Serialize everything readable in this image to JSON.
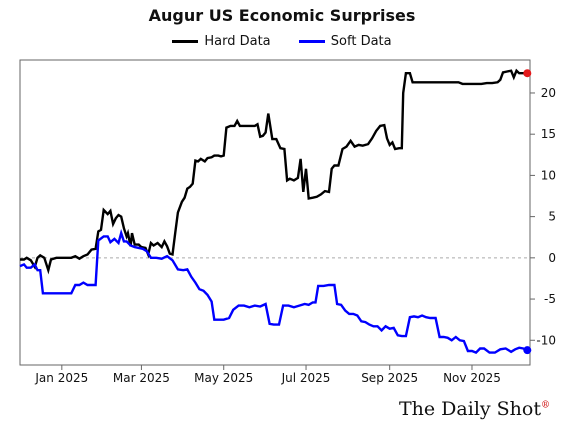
{
  "chart_data": {
    "type": "line",
    "title": "Augur US Economic Surprises",
    "xlabel": "",
    "ylabel": "",
    "ylim": [
      -13,
      24
    ],
    "x_tick_labels": [
      "Jan 2025",
      "Mar 2025",
      "May 2025",
      "Jul 2025",
      "Sep 2025",
      "Nov 2025"
    ],
    "x_tick_dates": [
      "2025-01-01",
      "2025-03-01",
      "2025-05-01",
      "2025-07-01",
      "2025-09-01",
      "2025-11-01"
    ],
    "x_range": [
      "2024-12-01",
      "2025-12-14"
    ],
    "y_ticks": [
      -10,
      -5,
      0,
      5,
      10,
      15,
      20
    ],
    "y_axis_side": "right",
    "zero_line": true,
    "grid": false,
    "legend_position": "top-center",
    "series": [
      {
        "name": "Hard Data",
        "color": "#000000",
        "end_marker_color": "#e31a1c",
        "points": [
          [
            "2024-12-01",
            -0.2
          ],
          [
            "2024-12-04",
            -0.2
          ],
          [
            "2024-12-06",
            0.0
          ],
          [
            "2024-12-09",
            -0.3
          ],
          [
            "2024-12-12",
            -1.1
          ],
          [
            "2024-12-14",
            0.0
          ],
          [
            "2024-12-16",
            0.3
          ],
          [
            "2024-12-19",
            0.0
          ],
          [
            "2024-12-22",
            -1.5
          ],
          [
            "2024-12-24",
            -0.2
          ],
          [
            "2024-12-28",
            0.0
          ],
          [
            "2025-01-02",
            0.0
          ],
          [
            "2025-01-08",
            0.0
          ],
          [
            "2025-01-11",
            0.2
          ],
          [
            "2025-01-14",
            -0.1
          ],
          [
            "2025-01-17",
            0.2
          ],
          [
            "2025-01-20",
            0.4
          ],
          [
            "2025-01-23",
            1.0
          ],
          [
            "2025-01-26",
            1.1
          ],
          [
            "2025-01-28",
            3.2
          ],
          [
            "2025-01-30",
            3.4
          ],
          [
            "2025-02-01",
            5.8
          ],
          [
            "2025-02-04",
            5.3
          ],
          [
            "2025-02-06",
            5.7
          ],
          [
            "2025-02-08",
            4.1
          ],
          [
            "2025-02-10",
            4.8
          ],
          [
            "2025-02-12",
            5.2
          ],
          [
            "2025-02-14",
            5.0
          ],
          [
            "2025-02-16",
            3.6
          ],
          [
            "2025-02-18",
            2.6
          ],
          [
            "2025-02-19",
            3.0
          ],
          [
            "2025-02-21",
            1.4
          ],
          [
            "2025-02-22",
            3.0
          ],
          [
            "2025-02-24",
            1.6
          ],
          [
            "2025-02-27",
            1.6
          ],
          [
            "2025-03-01",
            1.3
          ],
          [
            "2025-03-04",
            1.2
          ],
          [
            "2025-03-06",
            0.4
          ],
          [
            "2025-03-08",
            1.8
          ],
          [
            "2025-03-10",
            1.5
          ],
          [
            "2025-03-13",
            1.8
          ],
          [
            "2025-03-16",
            1.3
          ],
          [
            "2025-03-18",
            2.0
          ],
          [
            "2025-03-20",
            1.4
          ],
          [
            "2025-03-22",
            0.5
          ],
          [
            "2025-03-24",
            0.4
          ],
          [
            "2025-03-26",
            3.0
          ],
          [
            "2025-03-28",
            5.5
          ],
          [
            "2025-03-31",
            6.8
          ],
          [
            "2025-04-02",
            7.3
          ],
          [
            "2025-04-04",
            8.4
          ],
          [
            "2025-04-06",
            8.6
          ],
          [
            "2025-04-08",
            9.0
          ],
          [
            "2025-04-10",
            11.8
          ],
          [
            "2025-04-12",
            11.7
          ],
          [
            "2025-04-14",
            12.0
          ],
          [
            "2025-04-17",
            11.7
          ],
          [
            "2025-04-19",
            12.1
          ],
          [
            "2025-04-22",
            12.2
          ],
          [
            "2025-04-24",
            12.4
          ],
          [
            "2025-04-27",
            12.4
          ],
          [
            "2025-04-29",
            12.3
          ],
          [
            "2025-05-01",
            12.4
          ],
          [
            "2025-05-03",
            15.8
          ],
          [
            "2025-05-06",
            16.0
          ],
          [
            "2025-05-09",
            16.0
          ],
          [
            "2025-05-11",
            16.6
          ],
          [
            "2025-05-13",
            16.0
          ],
          [
            "2025-05-16",
            16.0
          ],
          [
            "2025-05-20",
            16.0
          ],
          [
            "2025-05-24",
            16.0
          ],
          [
            "2025-05-26",
            16.2
          ],
          [
            "2025-05-28",
            14.7
          ],
          [
            "2025-05-30",
            14.8
          ],
          [
            "2025-06-01",
            15.2
          ],
          [
            "2025-06-03",
            17.5
          ],
          [
            "2025-06-06",
            14.4
          ],
          [
            "2025-06-09",
            14.4
          ],
          [
            "2025-06-12",
            13.3
          ],
          [
            "2025-06-15",
            13.2
          ],
          [
            "2025-06-17",
            9.4
          ],
          [
            "2025-06-19",
            9.6
          ],
          [
            "2025-06-22",
            9.4
          ],
          [
            "2025-06-25",
            9.7
          ],
          [
            "2025-06-27",
            12.0
          ],
          [
            "2025-06-29",
            8.0
          ],
          [
            "2025-07-01",
            10.8
          ],
          [
            "2025-07-03",
            7.2
          ],
          [
            "2025-07-06",
            7.3
          ],
          [
            "2025-07-09",
            7.4
          ],
          [
            "2025-07-12",
            7.7
          ],
          [
            "2025-07-15",
            8.1
          ],
          [
            "2025-07-18",
            8.0
          ],
          [
            "2025-07-20",
            10.8
          ],
          [
            "2025-07-22",
            11.2
          ],
          [
            "2025-07-25",
            11.2
          ],
          [
            "2025-07-28",
            13.2
          ],
          [
            "2025-07-31",
            13.5
          ],
          [
            "2025-08-03",
            14.2
          ],
          [
            "2025-08-06",
            13.5
          ],
          [
            "2025-08-09",
            13.7
          ],
          [
            "2025-08-12",
            13.6
          ],
          [
            "2025-08-16",
            13.8
          ],
          [
            "2025-08-19",
            14.5
          ],
          [
            "2025-08-22",
            15.4
          ],
          [
            "2025-08-25",
            16.0
          ],
          [
            "2025-08-28",
            16.1
          ],
          [
            "2025-08-30",
            14.5
          ],
          [
            "2025-09-01",
            13.7
          ],
          [
            "2025-09-03",
            14.0
          ],
          [
            "2025-09-05",
            13.2
          ],
          [
            "2025-09-08",
            13.3
          ],
          [
            "2025-09-10",
            13.3
          ],
          [
            "2025-09-11",
            20.0
          ],
          [
            "2025-09-13",
            22.4
          ],
          [
            "2025-09-16",
            22.4
          ],
          [
            "2025-09-18",
            21.3
          ],
          [
            "2025-09-25",
            21.3
          ],
          [
            "2025-10-05",
            21.3
          ],
          [
            "2025-10-15",
            21.3
          ],
          [
            "2025-10-22",
            21.3
          ],
          [
            "2025-10-25",
            21.1
          ],
          [
            "2025-11-01",
            21.1
          ],
          [
            "2025-11-08",
            21.1
          ],
          [
            "2025-11-12",
            21.2
          ],
          [
            "2025-11-16",
            21.2
          ],
          [
            "2025-11-20",
            21.3
          ],
          [
            "2025-11-22",
            21.6
          ],
          [
            "2025-11-24",
            22.5
          ],
          [
            "2025-11-27",
            22.6
          ],
          [
            "2025-11-30",
            22.7
          ],
          [
            "2025-12-02",
            21.9
          ],
          [
            "2025-12-04",
            22.7
          ],
          [
            "2025-12-06",
            22.4
          ],
          [
            "2025-12-09",
            22.4
          ],
          [
            "2025-12-12",
            22.4
          ]
        ]
      },
      {
        "name": "Soft Data",
        "color": "#0000ff",
        "end_marker_color": "#0000ff",
        "points": [
          [
            "2024-12-01",
            -1.0
          ],
          [
            "2024-12-04",
            -0.8
          ],
          [
            "2024-12-06",
            -1.2
          ],
          [
            "2024-12-09",
            -1.2
          ],
          [
            "2024-12-12",
            -0.8
          ],
          [
            "2024-12-14",
            -1.5
          ],
          [
            "2024-12-16",
            -1.5
          ],
          [
            "2024-12-18",
            -4.3
          ],
          [
            "2024-12-24",
            -4.3
          ],
          [
            "2024-12-31",
            -4.3
          ],
          [
            "2025-01-08",
            -4.3
          ],
          [
            "2025-01-11",
            -3.3
          ],
          [
            "2025-01-14",
            -3.3
          ],
          [
            "2025-01-17",
            -3.0
          ],
          [
            "2025-01-20",
            -3.3
          ],
          [
            "2025-01-24",
            -3.3
          ],
          [
            "2025-01-26",
            -3.3
          ],
          [
            "2025-01-28",
            2.1
          ],
          [
            "2025-02-01",
            2.6
          ],
          [
            "2025-02-04",
            2.6
          ],
          [
            "2025-02-06",
            1.9
          ],
          [
            "2025-02-09",
            2.3
          ],
          [
            "2025-02-12",
            1.8
          ],
          [
            "2025-02-14",
            3.0
          ],
          [
            "2025-02-16",
            2.0
          ],
          [
            "2025-02-18",
            2.0
          ],
          [
            "2025-02-21",
            1.5
          ],
          [
            "2025-02-24",
            1.3
          ],
          [
            "2025-02-27",
            1.2
          ],
          [
            "2025-03-02",
            1.1
          ],
          [
            "2025-03-05",
            0.8
          ],
          [
            "2025-03-08",
            0.0
          ],
          [
            "2025-03-12",
            0.0
          ],
          [
            "2025-03-16",
            -0.1
          ],
          [
            "2025-03-20",
            0.2
          ],
          [
            "2025-03-24",
            -0.3
          ],
          [
            "2025-03-28",
            -1.4
          ],
          [
            "2025-04-01",
            -1.5
          ],
          [
            "2025-04-04",
            -1.4
          ],
          [
            "2025-04-07",
            -2.3
          ],
          [
            "2025-04-10",
            -3.0
          ],
          [
            "2025-04-13",
            -3.8
          ],
          [
            "2025-04-16",
            -4.0
          ],
          [
            "2025-04-19",
            -4.5
          ],
          [
            "2025-04-22",
            -5.3
          ],
          [
            "2025-04-24",
            -7.5
          ],
          [
            "2025-04-28",
            -7.5
          ],
          [
            "2025-05-01",
            -7.5
          ],
          [
            "2025-05-05",
            -7.3
          ],
          [
            "2025-05-08",
            -6.3
          ],
          [
            "2025-05-12",
            -5.8
          ],
          [
            "2025-05-16",
            -5.8
          ],
          [
            "2025-05-20",
            -6.0
          ],
          [
            "2025-05-24",
            -5.8
          ],
          [
            "2025-05-28",
            -5.9
          ],
          [
            "2025-06-01",
            -5.6
          ],
          [
            "2025-06-04",
            -8.0
          ],
          [
            "2025-06-07",
            -8.1
          ],
          [
            "2025-06-11",
            -8.1
          ],
          [
            "2025-06-14",
            -5.8
          ],
          [
            "2025-06-18",
            -5.8
          ],
          [
            "2025-06-22",
            -6.0
          ],
          [
            "2025-06-26",
            -5.8
          ],
          [
            "2025-06-30",
            -5.6
          ],
          [
            "2025-07-03",
            -5.7
          ],
          [
            "2025-07-06",
            -5.4
          ],
          [
            "2025-07-08",
            -5.4
          ],
          [
            "2025-07-10",
            -3.4
          ],
          [
            "2025-07-14",
            -3.4
          ],
          [
            "2025-07-18",
            -3.3
          ],
          [
            "2025-07-22",
            -3.3
          ],
          [
            "2025-07-24",
            -5.6
          ],
          [
            "2025-07-27",
            -5.7
          ],
          [
            "2025-07-30",
            -6.4
          ],
          [
            "2025-08-02",
            -6.8
          ],
          [
            "2025-08-05",
            -6.8
          ],
          [
            "2025-08-08",
            -7.0
          ],
          [
            "2025-08-11",
            -7.7
          ],
          [
            "2025-08-14",
            -7.8
          ],
          [
            "2025-08-17",
            -8.1
          ],
          [
            "2025-08-20",
            -8.3
          ],
          [
            "2025-08-23",
            -8.3
          ],
          [
            "2025-08-26",
            -8.8
          ],
          [
            "2025-08-29",
            -8.3
          ],
          [
            "2025-09-01",
            -8.6
          ],
          [
            "2025-09-04",
            -8.5
          ],
          [
            "2025-09-07",
            -9.4
          ],
          [
            "2025-09-10",
            -9.5
          ],
          [
            "2025-09-13",
            -9.5
          ],
          [
            "2025-09-16",
            -7.2
          ],
          [
            "2025-09-19",
            -7.1
          ],
          [
            "2025-09-22",
            -7.2
          ],
          [
            "2025-09-25",
            -7.0
          ],
          [
            "2025-09-28",
            -7.2
          ],
          [
            "2025-10-01",
            -7.3
          ],
          [
            "2025-10-05",
            -7.3
          ],
          [
            "2025-10-08",
            -9.6
          ],
          [
            "2025-10-11",
            -9.6
          ],
          [
            "2025-10-14",
            -9.7
          ],
          [
            "2025-10-17",
            -10.0
          ],
          [
            "2025-10-20",
            -9.6
          ],
          [
            "2025-10-23",
            -10.0
          ],
          [
            "2025-10-26",
            -10.1
          ],
          [
            "2025-10-29",
            -11.3
          ],
          [
            "2025-11-01",
            -11.3
          ],
          [
            "2025-11-04",
            -11.5
          ],
          [
            "2025-11-07",
            -11.0
          ],
          [
            "2025-11-10",
            -11.0
          ],
          [
            "2025-11-14",
            -11.5
          ],
          [
            "2025-11-18",
            -11.5
          ],
          [
            "2025-11-22",
            -11.1
          ],
          [
            "2025-11-26",
            -11.0
          ],
          [
            "2025-11-30",
            -11.4
          ],
          [
            "2025-12-03",
            -11.1
          ],
          [
            "2025-12-06",
            -10.9
          ],
          [
            "2025-12-09",
            -11.0
          ],
          [
            "2025-12-12",
            -11.2
          ]
        ]
      }
    ]
  },
  "brand": {
    "name": "The Daily Shot",
    "mark": "®"
  }
}
